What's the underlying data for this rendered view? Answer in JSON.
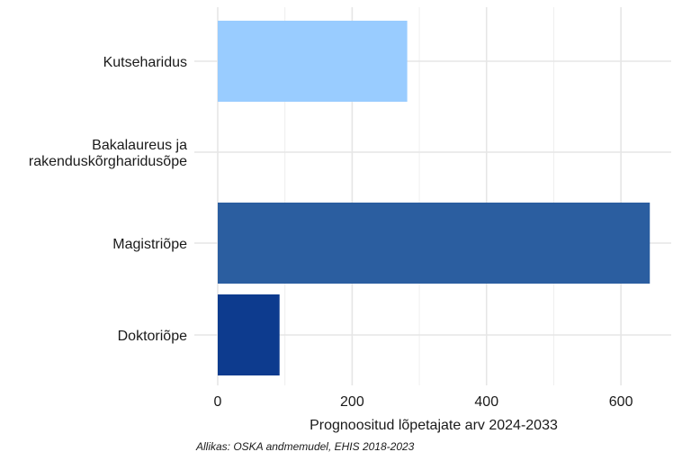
{
  "chart_data": {
    "type": "bar",
    "orientation": "horizontal",
    "categories": [
      "Kutseharidus",
      "Bakalaureus ja rakenduskõrgharidusõpe",
      "Magistriõpe",
      "Doktoriõpe"
    ],
    "category_label_lines": [
      [
        "Kutseharidus"
      ],
      [
        "Bakalaureus ja",
        "rakenduskõrgharidusõpe"
      ],
      [
        "Magistriõpe"
      ],
      [
        "Doktoriõpe"
      ]
    ],
    "values": [
      282,
      0,
      643,
      92
    ],
    "colors": [
      "#99ccff",
      "#99ccff",
      "#2b5ea0",
      "#0d3b8e"
    ],
    "xlabel": "Prognoositud lõpetajate arv 2024-2033",
    "ylabel": "",
    "xlim": [
      0,
      675
    ],
    "xticks": [
      0,
      200,
      400,
      600
    ],
    "xtick_labels": [
      "0",
      "200",
      "400",
      "600"
    ],
    "grid": true,
    "legend": "none"
  },
  "caption": "Allikas: OSKA andmemudel, EHIS 2018-2023"
}
